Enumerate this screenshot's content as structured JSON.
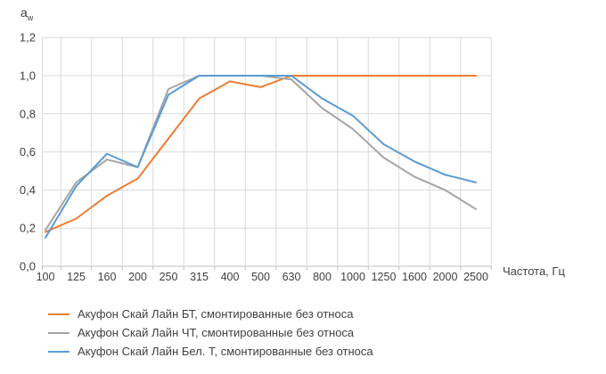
{
  "chart_data": {
    "type": "line",
    "title": "",
    "ylabel_base": "a",
    "ylabel_sub": "w",
    "xlabel": "Частота, Гц",
    "grid": true,
    "legend_position": "bottom-left",
    "ylim": [
      0.0,
      1.2
    ],
    "yticks": {
      "values": [
        0,
        0.2,
        0.4,
        0.6,
        0.8,
        1.0,
        1.2
      ],
      "labels": [
        "0,0",
        "0,2",
        "0,4",
        "0,6",
        "0,8",
        "1,0",
        "1,2"
      ]
    },
    "x": [
      "100",
      "125",
      "160",
      "200",
      "250",
      "315",
      "400",
      "500",
      "630",
      "800",
      "1000",
      "1250",
      "1600",
      "2000",
      "2500"
    ],
    "series": [
      {
        "name": "Акуфон Скай Лайн БТ, смонтированные без относа",
        "color": "#ED7D31",
        "values": [
          0.18,
          0.25,
          0.37,
          0.46,
          0.67,
          0.88,
          0.97,
          0.94,
          1.0,
          1.0,
          1.0,
          1.0,
          1.0,
          1.0,
          1.0
        ]
      },
      {
        "name": "Акуфон Скай Лайн ЧТ, смонтированные без относа",
        "color": "#A5A5A5",
        "values": [
          0.19,
          0.44,
          0.56,
          0.52,
          0.93,
          1.0,
          1.0,
          1.0,
          0.98,
          0.83,
          0.72,
          0.57,
          0.47,
          0.4,
          0.3
        ]
      },
      {
        "name": "Акуфон Скай Лайн Бел. Т, смонтированные без относа",
        "color": "#5B9BD5",
        "values": [
          0.15,
          0.42,
          0.59,
          0.52,
          0.9,
          1.0,
          1.0,
          1.0,
          1.0,
          0.88,
          0.79,
          0.64,
          0.55,
          0.48,
          0.44
        ]
      }
    ],
    "colors": {
      "gridline": "#D9D9D9",
      "axis_line": "#BFBFBF",
      "tick_text": "#404040"
    }
  }
}
